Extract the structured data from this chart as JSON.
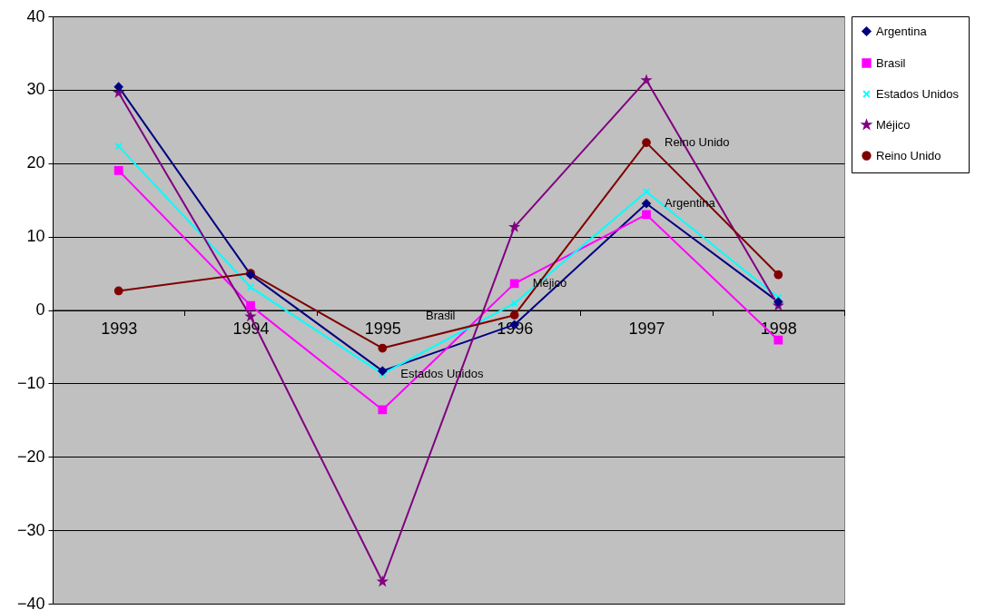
{
  "chart_data": {
    "type": "line",
    "categories": [
      "1993",
      "1994",
      "1995",
      "1996",
      "1997",
      "1998"
    ],
    "series": [
      {
        "name": "Argentina",
        "color": "#000080",
        "marker": "diamond",
        "values": [
          30.4,
          4.8,
          -8.3,
          -2.0,
          14.5,
          1.1
        ]
      },
      {
        "name": "Brasil",
        "color": "#ff00ff",
        "marker": "square",
        "values": [
          19.0,
          0.6,
          -13.6,
          3.6,
          13.0,
          -4.1
        ]
      },
      {
        "name": "Estados Unidos",
        "color": "#00ffff",
        "marker": "cross",
        "values": [
          22.3,
          3.1,
          -8.7,
          0.9,
          16.1,
          1.7
        ]
      },
      {
        "name": "Méjico",
        "color": "#800080",
        "marker": "star",
        "values": [
          29.6,
          -0.9,
          -37.0,
          11.3,
          31.3,
          0.6
        ]
      },
      {
        "name": "Reino Unido",
        "color": "#800000",
        "marker": "circle",
        "values": [
          2.6,
          5.0,
          -5.2,
          -0.7,
          22.8,
          4.8
        ]
      }
    ],
    "ylim": [
      -40,
      40
    ],
    "yticks": [
      -40,
      -30,
      -20,
      -10,
      0,
      10,
      20,
      30,
      40
    ],
    "grid": "y",
    "legend": "right",
    "annotations": [
      {
        "text": "Reino Unido",
        "x": "1997",
        "y": 22.8
      },
      {
        "text": "Argentina",
        "x": "1997",
        "y": 14.5
      },
      {
        "text": "Estados Unidos",
        "x": "1995",
        "y": -8.7
      },
      "Brasil",
      {
        "text": "Méjico",
        "x": "1996",
        "y": 3.6
      }
    ]
  }
}
